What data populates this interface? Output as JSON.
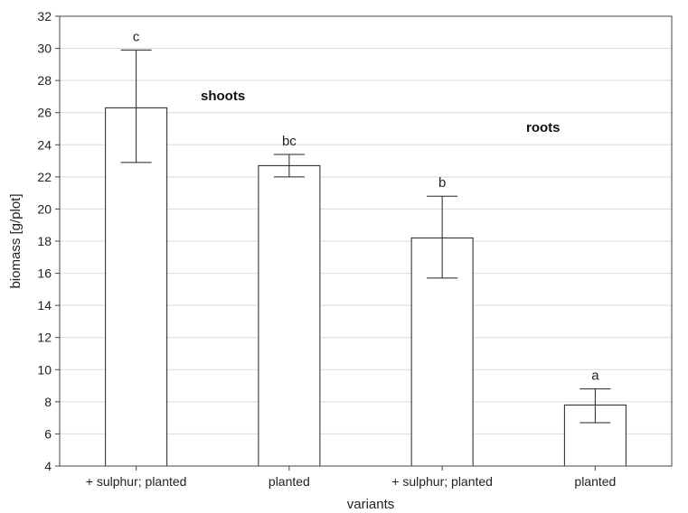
{
  "chart_data": {
    "type": "bar",
    "xlabel": "variants",
    "ylabel": "biomass [g/plot]",
    "ylim": [
      4,
      32
    ],
    "yticks": [
      4,
      6,
      8,
      10,
      12,
      14,
      16,
      18,
      20,
      22,
      24,
      26,
      28,
      30,
      32
    ],
    "grid": true,
    "categories": [
      "+ sulphur; planted",
      "planted",
      "+ sulphur; planted",
      "planted"
    ],
    "values": [
      26.3,
      22.7,
      18.2,
      7.8
    ],
    "error_low": [
      22.9,
      22.0,
      15.7,
      6.7
    ],
    "error_high": [
      29.9,
      23.4,
      20.8,
      8.8
    ],
    "significance_labels": [
      "c",
      "bc",
      "b",
      "a"
    ],
    "annotations": [
      {
        "text": "shoots"
      },
      {
        "text": "roots"
      }
    ]
  }
}
